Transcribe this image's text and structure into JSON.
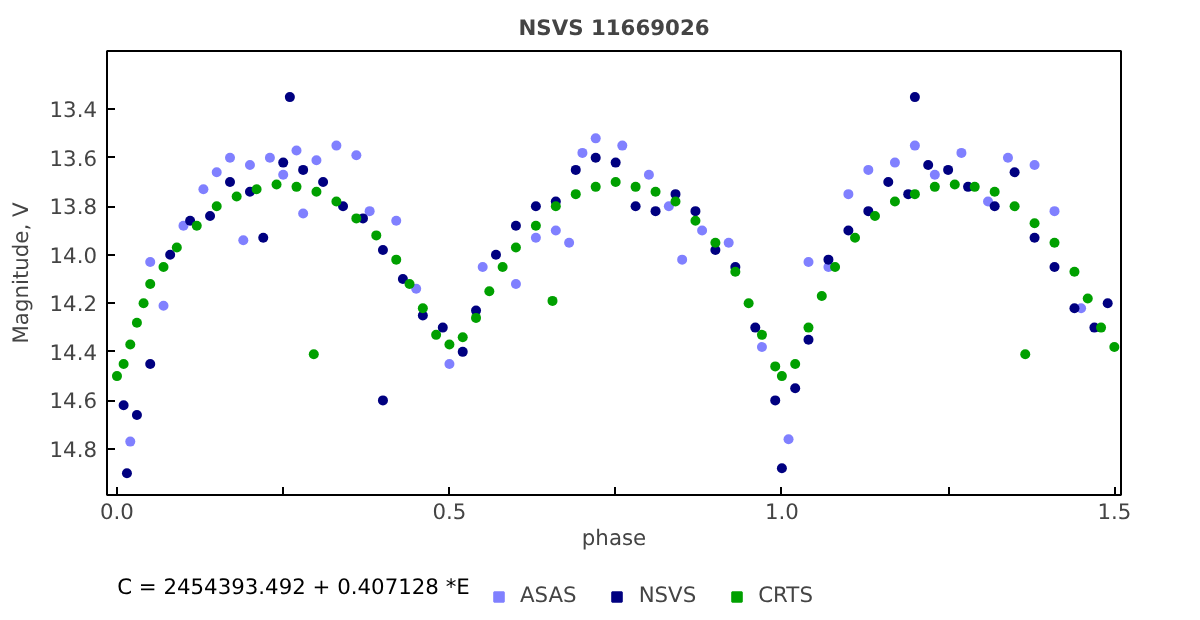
{
  "chart_data": {
    "type": "scatter",
    "title": "NSVS 11669026",
    "xlabel": "phase",
    "ylabel": "Magnitude, V",
    "annotations": [
      "C = 2454393.492 + 0.407128 *E"
    ],
    "xlim": [
      -0.015,
      1.51
    ],
    "ylim": [
      14.99,
      13.16
    ],
    "xticks": [
      {
        "value": 0,
        "label": "0.0"
      },
      {
        "value": 0.25,
        "label": null
      },
      0.5,
      {
        "value": 0.75,
        "label": null
      },
      {
        "value": 1,
        "label": "1.0"
      },
      {
        "value": 1.25,
        "label": null
      },
      1.5
    ],
    "yticks": [
      13.4,
      13.6,
      13.8,
      {
        "value": 14,
        "label": "14.0"
      },
      14.2,
      14.4,
      14.6,
      14.8
    ],
    "grid": false,
    "legend": "bottom",
    "marker": "circle",
    "series": [
      {
        "name": "ASAS",
        "color": "#8080ff",
        "x": [
          0.02,
          0.05,
          0.07,
          0.1,
          0.13,
          0.17,
          0.2,
          0.23,
          0.27,
          0.3,
          0.33,
          0.36,
          0.19,
          0.28,
          0.38,
          0.42,
          0.45,
          0.5,
          0.55,
          0.6,
          0.63,
          0.66,
          0.7,
          0.72,
          0.76,
          0.8,
          0.83,
          0.88,
          0.92,
          0.97,
          1.01,
          1.04,
          1.07,
          1.1,
          1.13,
          1.17,
          1.2,
          1.23,
          1.27,
          1.31,
          1.34,
          1.38,
          1.41,
          1.45,
          0.15,
          0.25,
          0.68,
          0.85
        ],
        "values": [
          14.77,
          14.03,
          14.21,
          13.88,
          13.73,
          13.6,
          13.63,
          13.6,
          13.57,
          13.61,
          13.55,
          13.59,
          13.94,
          13.83,
          13.82,
          13.86,
          14.14,
          14.45,
          14.05,
          14.12,
          13.93,
          13.9,
          13.58,
          13.52,
          13.55,
          13.67,
          13.8,
          13.9,
          13.95,
          14.38,
          14.76,
          14.03,
          14.05,
          13.75,
          13.65,
          13.62,
          13.55,
          13.67,
          13.58,
          13.78,
          13.6,
          13.63,
          13.82,
          14.22,
          13.66,
          13.67,
          13.95,
          14.02
        ]
      },
      {
        "name": "NSVS",
        "color": "#000080",
        "x": [
          0.01,
          0.015,
          0.03,
          0.05,
          0.08,
          0.11,
          0.14,
          0.17,
          0.2,
          0.22,
          0.25,
          0.28,
          0.31,
          0.34,
          0.37,
          0.4,
          0.43,
          0.46,
          0.49,
          0.52,
          0.54,
          0.57,
          0.6,
          0.63,
          0.66,
          0.69,
          0.72,
          0.75,
          0.78,
          0.81,
          0.84,
          0.87,
          0.9,
          0.93,
          0.96,
          0.99,
          1.0,
          1.02,
          1.04,
          1.07,
          1.1,
          1.13,
          1.16,
          1.19,
          1.22,
          1.25,
          1.28,
          1.32,
          1.35,
          1.38,
          1.41,
          1.44,
          1.47,
          1.49,
          0.26,
          1.2,
          0.4
        ],
        "values": [
          14.62,
          14.9,
          14.66,
          14.45,
          14.0,
          13.86,
          13.84,
          13.7,
          13.74,
          13.93,
          13.62,
          13.65,
          13.7,
          13.8,
          13.85,
          13.98,
          14.1,
          14.25,
          14.3,
          14.4,
          14.23,
          14.0,
          13.88,
          13.8,
          13.78,
          13.65,
          13.6,
          13.62,
          13.8,
          13.82,
          13.75,
          13.82,
          13.98,
          14.05,
          14.3,
          14.6,
          14.88,
          14.55,
          14.35,
          14.02,
          13.9,
          13.82,
          13.7,
          13.75,
          13.63,
          13.65,
          13.72,
          13.8,
          13.66,
          13.93,
          14.05,
          14.22,
          14.3,
          14.2,
          13.35,
          13.35,
          14.6
        ]
      },
      {
        "name": "CRTS",
        "color": "#00a000",
        "x": [
          0.0,
          0.01,
          0.02,
          0.03,
          0.04,
          0.05,
          0.07,
          0.09,
          0.12,
          0.15,
          0.18,
          0.21,
          0.24,
          0.27,
          0.3,
          0.33,
          0.36,
          0.39,
          0.42,
          0.44,
          0.46,
          0.48,
          0.5,
          0.52,
          0.54,
          0.56,
          0.58,
          0.6,
          0.63,
          0.66,
          0.69,
          0.72,
          0.75,
          0.78,
          0.81,
          0.84,
          0.87,
          0.9,
          0.93,
          0.95,
          0.97,
          0.99,
          1.0,
          1.02,
          1.04,
          1.06,
          1.08,
          1.11,
          1.14,
          1.17,
          1.2,
          1.23,
          1.26,
          1.29,
          1.32,
          1.35,
          1.38,
          1.41,
          1.44,
          1.46,
          1.48,
          1.5,
          0.296,
          0.655,
          1.366
        ],
        "values": [
          14.5,
          14.45,
          14.37,
          14.28,
          14.2,
          14.12,
          14.05,
          13.97,
          13.88,
          13.8,
          13.76,
          13.73,
          13.71,
          13.72,
          13.74,
          13.78,
          13.85,
          13.92,
          14.02,
          14.12,
          14.22,
          14.33,
          14.37,
          14.34,
          14.26,
          14.15,
          14.05,
          13.97,
          13.88,
          13.8,
          13.75,
          13.72,
          13.7,
          13.72,
          13.74,
          13.78,
          13.86,
          13.95,
          14.07,
          14.2,
          14.33,
          14.46,
          14.5,
          14.45,
          14.3,
          14.17,
          14.05,
          13.93,
          13.84,
          13.78,
          13.75,
          13.72,
          13.71,
          13.72,
          13.74,
          13.8,
          13.87,
          13.95,
          14.07,
          14.18,
          14.3,
          14.38,
          14.41,
          14.19,
          14.41
        ]
      }
    ]
  }
}
